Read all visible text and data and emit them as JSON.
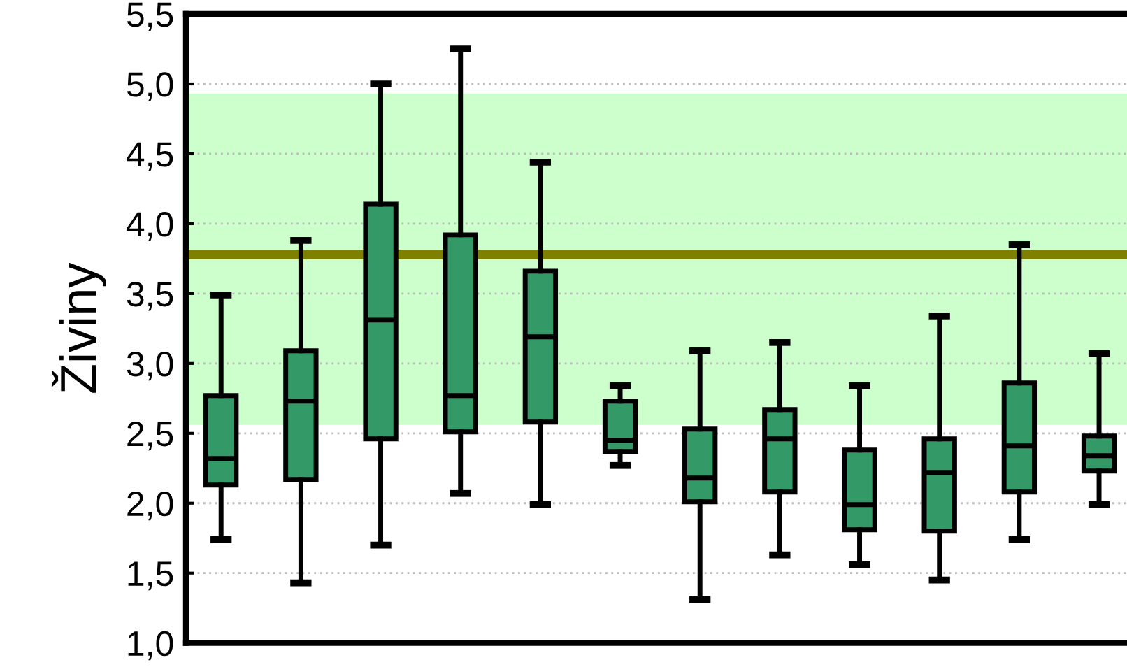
{
  "chart_data": {
    "type": "box",
    "ylabel": "Živiny",
    "categories": [
      null,
      null,
      null,
      null,
      null,
      null,
      null,
      null,
      null,
      null,
      null,
      null
    ],
    "color": "#339966",
    "boxes": [
      {
        "low": 1.74,
        "q1": 2.13,
        "median": 2.32,
        "q3": 2.77,
        "high": 3.49
      },
      {
        "low": 1.43,
        "q1": 2.17,
        "median": 2.73,
        "q3": 3.09,
        "high": 3.88
      },
      {
        "low": 1.7,
        "q1": 2.46,
        "median": 3.31,
        "q3": 4.14,
        "high": 5.0
      },
      {
        "low": 2.07,
        "q1": 2.51,
        "median": 2.77,
        "q3": 3.92,
        "high": 5.25
      },
      {
        "low": 1.99,
        "q1": 2.58,
        "median": 3.19,
        "q3": 3.66,
        "high": 4.44
      },
      {
        "low": 2.27,
        "q1": 2.37,
        "median": 2.45,
        "q3": 2.73,
        "high": 2.84
      },
      {
        "low": 1.31,
        "q1": 2.01,
        "median": 2.18,
        "q3": 2.53,
        "high": 3.09
      },
      {
        "low": 1.63,
        "q1": 2.08,
        "median": 2.46,
        "q3": 2.67,
        "high": 3.15
      },
      {
        "low": 1.56,
        "q1": 1.81,
        "median": 1.99,
        "q3": 2.38,
        "high": 2.84
      },
      {
        "low": 1.45,
        "q1": 1.8,
        "median": 2.22,
        "q3": 2.46,
        "high": 3.34
      },
      {
        "low": 1.74,
        "q1": 2.08,
        "median": 2.41,
        "q3": 2.86,
        "high": 3.85
      },
      {
        "low": 1.99,
        "q1": 2.23,
        "median": 2.34,
        "q3": 2.48,
        "high": 3.07
      }
    ],
    "ylim": [
      1.0,
      5.5
    ],
    "yticks": [
      {
        "value": 1.0,
        "label": "1,0"
      },
      {
        "value": 1.5,
        "label": "1,5"
      },
      {
        "value": 2.0,
        "label": "2,0"
      },
      {
        "value": 2.5,
        "label": "2,5"
      },
      {
        "value": 3.0,
        "label": "3,0"
      },
      {
        "value": 3.5,
        "label": "3,5"
      },
      {
        "value": 4.0,
        "label": "4,0"
      },
      {
        "value": 4.5,
        "label": "4,5"
      },
      {
        "value": 5.0,
        "label": "5,0"
      },
      {
        "value": 5.5,
        "label": "5,5"
      }
    ],
    "grid": "y",
    "ref_lines": [
      {
        "axis": "y",
        "value": 3.78,
        "color": "#808000"
      }
    ],
    "bands": [
      {
        "axis": "y",
        "from": 2.56,
        "to": 4.93,
        "color": "#ccffcc"
      }
    ]
  }
}
